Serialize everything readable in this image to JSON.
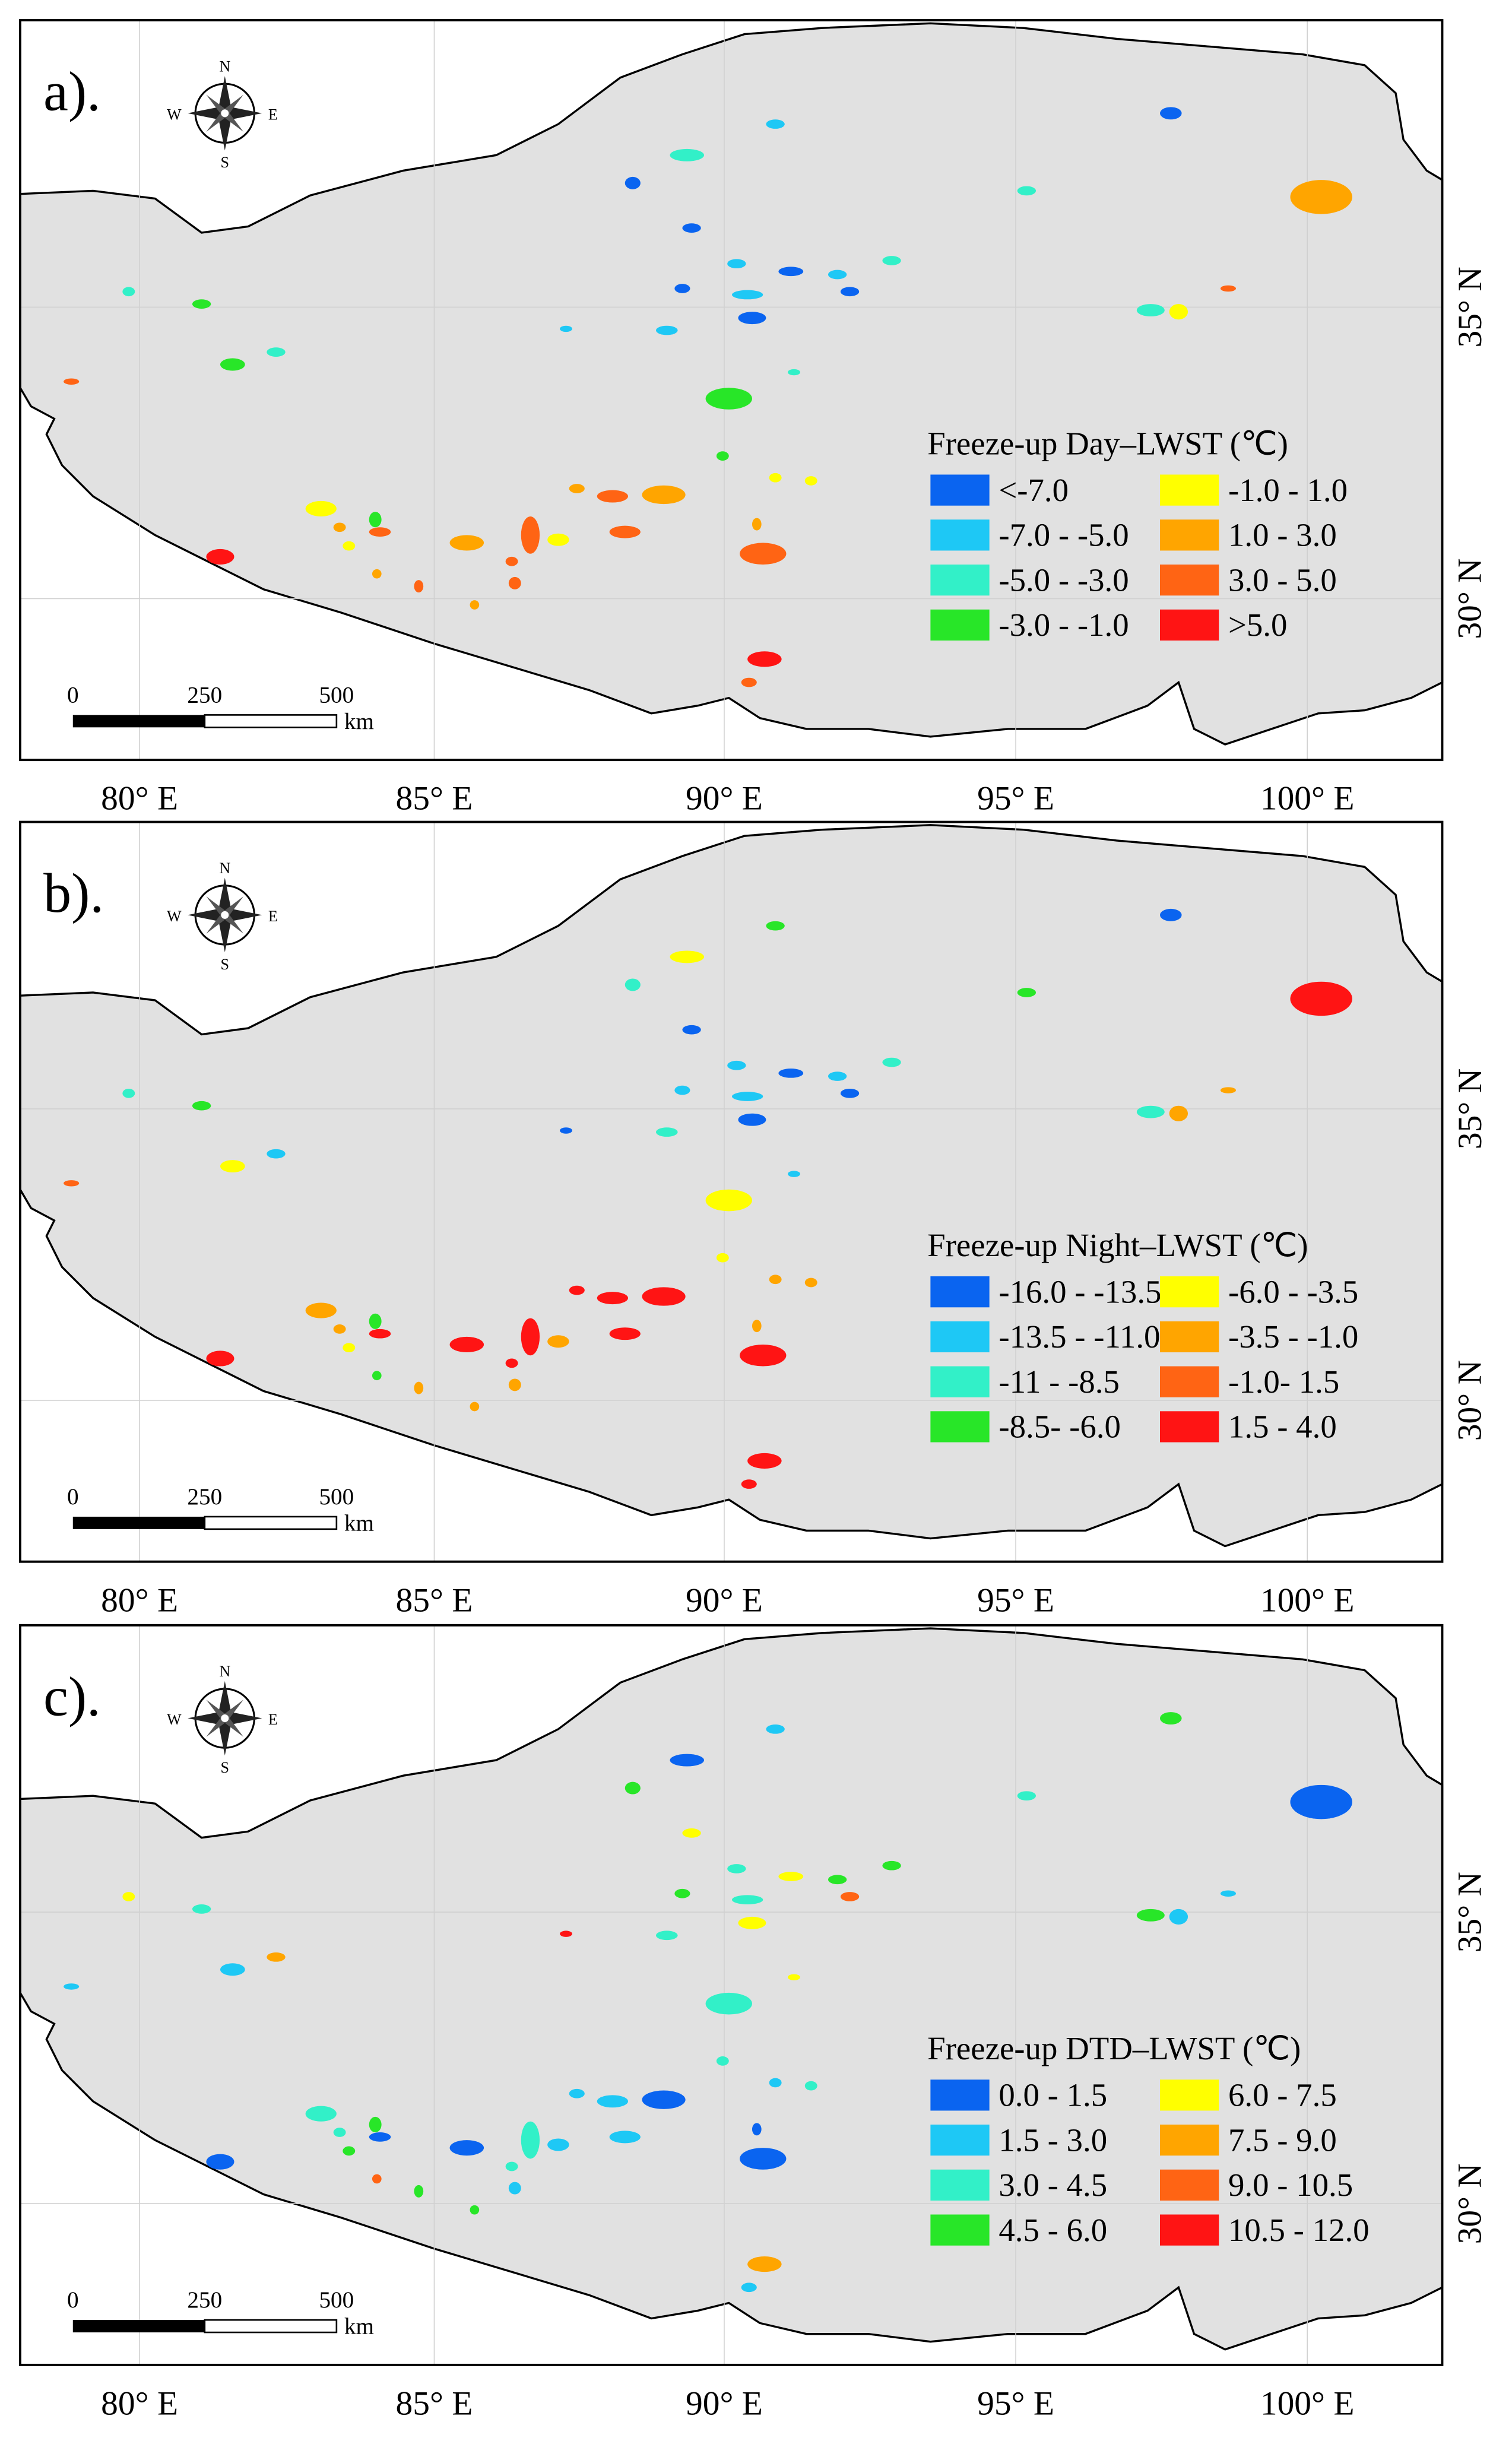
{
  "panels": [
    {
      "label": "a).",
      "legend": {
        "title": "Freeze-up Day–LWST (℃)",
        "items": [
          {
            "label": "<-7.0",
            "color": "#0a64f0"
          },
          {
            "label": "-7.0 - -5.0",
            "color": "#1ec8f5"
          },
          {
            "label": "-5.0 - -3.0",
            "color": "#32f0c8"
          },
          {
            "label": "-3.0 - -1.0",
            "color": "#28e628"
          },
          {
            "label": "-1.0 - 1.0",
            "color": "#ffff00"
          },
          {
            "label": "1.0 - 3.0",
            "color": "#ffa500"
          },
          {
            "label": "3.0 - 5.0",
            "color": "#ff6414"
          },
          {
            "label": ">5.0",
            "color": "#ff1414"
          }
        ]
      }
    },
    {
      "label": "b).",
      "legend": {
        "title": "Freeze-up Night–LWST (℃)",
        "items": [
          {
            "label": "-16.0 - -13.5",
            "color": "#0a64f0"
          },
          {
            "label": "-13.5 - -11.0",
            "color": "#1ec8f5"
          },
          {
            "label": "-11 - -8.5",
            "color": "#32f0c8"
          },
          {
            "label": "-8.5- -6.0",
            "color": "#28e628"
          },
          {
            "label": "-6.0 - -3.5",
            "color": "#ffff00"
          },
          {
            "label": "-3.5 - -1.0",
            "color": "#ffa500"
          },
          {
            "label": "-1.0- 1.5",
            "color": "#ff6414"
          },
          {
            "label": "1.5 - 4.0",
            "color": "#ff1414"
          }
        ]
      }
    },
    {
      "label": "c).",
      "legend": {
        "title": "Freeze-up DTD–LWST (℃)",
        "items": [
          {
            "label": "0.0 - 1.5",
            "color": "#0a64f0"
          },
          {
            "label": "1.5 - 3.0",
            "color": "#1ec8f5"
          },
          {
            "label": "3.0 - 4.5",
            "color": "#32f0c8"
          },
          {
            "label": "4.5 - 6.0",
            "color": "#28e628"
          },
          {
            "label": "6.0 - 7.5",
            "color": "#ffff00"
          },
          {
            "label": "7.5 - 9.0",
            "color": "#ffa500"
          },
          {
            "label": "9.0 - 10.5",
            "color": "#ff6414"
          },
          {
            "label": "10.5 - 12.0",
            "color": "#ff1414"
          }
        ]
      }
    }
  ],
  "axes": {
    "x_labels": [
      "80° E",
      "85° E",
      "90° E",
      "95° E",
      "100° E"
    ],
    "y_labels": [
      "35° N",
      "30° N"
    ]
  },
  "scale_bar": {
    "labels": [
      "0",
      "250",
      "500"
    ],
    "unit": "km"
  },
  "compass": {
    "n": "N",
    "s": "S",
    "w": "W",
    "e": "E"
  }
}
